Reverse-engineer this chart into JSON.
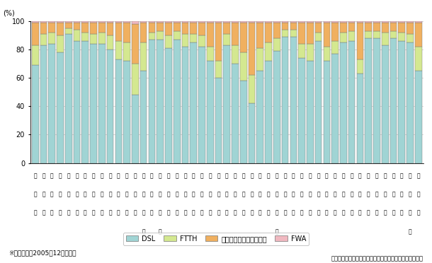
{
  "prefectures_line1": [
    "北",
    "青",
    "岩",
    "宮",
    "秋",
    "山",
    "福",
    "茨",
    "栃",
    "群",
    "埼",
    "千",
    "東",
    "神",
    "新",
    "富",
    "石",
    "福",
    "山",
    "長",
    "岐",
    "静",
    "愛",
    "三",
    "滋",
    "京",
    "大",
    "兵",
    "奈",
    "和",
    "鳥",
    "島",
    "岡",
    "広",
    "山",
    "徳",
    "香",
    "愛",
    "高",
    "福",
    "佐",
    "長",
    "熊",
    "大",
    "宮",
    "鹿",
    "沖"
  ],
  "prefectures_line2": [
    "海",
    "森",
    "手",
    "城",
    "田",
    "形",
    "島",
    "城",
    "木",
    "馬",
    "玉",
    "葉",
    "京",
    "奈",
    "潟",
    "山",
    "川",
    "井",
    "梨",
    "野",
    "阜",
    "岡",
    "知",
    "重",
    "賀",
    "都",
    "阪",
    "庫",
    "良",
    "歌",
    "取",
    "根",
    "山",
    "島",
    "口",
    "島",
    "川",
    "媛",
    "知",
    "岡",
    "賀",
    "崎",
    "本",
    "分",
    "崎",
    "児",
    "縄"
  ],
  "prefectures_line3": [
    "道",
    "県",
    "県",
    "県",
    "県",
    "県",
    "県",
    "県",
    "県",
    "県",
    "県",
    "県",
    "都",
    "川",
    "県",
    "川",
    "県",
    "県",
    "県",
    "県",
    "県",
    "県",
    "県",
    "県",
    "県",
    "府",
    "府",
    "県",
    "県",
    "山",
    "県",
    "県",
    "県",
    "県",
    "県",
    "県",
    "県",
    "県",
    "県",
    "県",
    "県",
    "県",
    "県",
    "県",
    "県",
    "島",
    "県"
  ],
  "prefectures_line4": [
    "",
    "",
    "",
    "",
    "",
    "",
    "",
    "",
    "",
    "",
    "",
    "",
    "",
    "県",
    "",
    "県",
    "",
    "",
    "",
    "",
    "",
    "",
    "",
    "",
    "",
    "",
    "",
    "",
    "",
    "県",
    "",
    "",
    "",
    "",
    "",
    "",
    "",
    "",
    "",
    "",
    "",
    "",
    "",
    "",
    "",
    "県",
    ""
  ],
  "DSL": [
    69,
    83,
    84,
    78,
    91,
    86,
    86,
    84,
    84,
    80,
    73,
    72,
    48,
    65,
    87,
    87,
    81,
    87,
    82,
    85,
    82,
    72,
    60,
    83,
    70,
    58,
    42,
    65,
    72,
    79,
    89,
    89,
    74,
    72,
    86,
    72,
    77,
    85,
    86,
    63,
    88,
    88,
    83,
    88,
    86,
    85,
    65
  ],
  "FTTH": [
    14,
    8,
    8,
    12,
    4,
    8,
    6,
    7,
    8,
    10,
    13,
    13,
    22,
    20,
    5,
    6,
    9,
    6,
    9,
    6,
    8,
    10,
    12,
    8,
    13,
    20,
    20,
    16,
    13,
    9,
    5,
    5,
    10,
    12,
    6,
    10,
    9,
    7,
    7,
    10,
    5,
    5,
    9,
    5,
    6,
    6,
    17
  ],
  "cable": [
    16,
    8,
    7,
    9,
    4,
    5,
    7,
    8,
    7,
    9,
    13,
    14,
    28,
    14,
    7,
    6,
    9,
    6,
    8,
    8,
    9,
    17,
    27,
    8,
    16,
    21,
    37,
    18,
    14,
    11,
    5,
    5,
    15,
    15,
    7,
    17,
    13,
    7,
    6,
    26,
    6,
    6,
    7,
    6,
    7,
    8,
    17
  ],
  "FWA": [
    1,
    1,
    1,
    1,
    1,
    1,
    1,
    1,
    1,
    1,
    1,
    1,
    2,
    1,
    1,
    1,
    1,
    1,
    1,
    1,
    1,
    1,
    1,
    1,
    1,
    1,
    1,
    1,
    1,
    1,
    1,
    1,
    1,
    1,
    1,
    1,
    1,
    1,
    1,
    1,
    1,
    1,
    1,
    1,
    1,
    1,
    1
  ],
  "color_DSL": "#a0d4d4",
  "color_FTTH": "#d4e890",
  "color_cable": "#f0b060",
  "color_FWA": "#f0b8c0",
  "ylabel": "(%)",
  "ylim": [
    0,
    100
  ],
  "yticks": [
    0,
    20,
    40,
    60,
    80,
    100
  ],
  "note": "※　データは2005年12月末現在",
  "source": "総務省「ブロードバンドサービス等の契約数」により作成",
  "legend_labels": [
    "DSL",
    "FTTH",
    "ケーブルインターネット",
    "FWA"
  ],
  "bg_color": "#ffffff",
  "grid_color": "#c8c8c8"
}
